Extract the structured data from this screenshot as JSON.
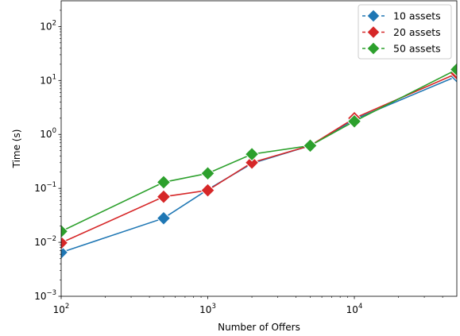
{
  "chart_data": {
    "type": "line",
    "xlabel": "Number of Offers",
    "ylabel": "Time (s)",
    "xscale": "log",
    "yscale": "log",
    "xlim": [
      100,
      50000
    ],
    "ylim": [
      0.001,
      300
    ],
    "x": [
      100,
      500,
      1000,
      2000,
      5000,
      10000,
      50000
    ],
    "xticks": [
      {
        "value": 100,
        "base": "10",
        "exp": "2"
      },
      {
        "value": 1000,
        "base": "10",
        "exp": "3"
      },
      {
        "value": 10000,
        "base": "10",
        "exp": "4"
      }
    ],
    "yticks": [
      {
        "value": 0.001,
        "base": "10",
        "exp": "−3"
      },
      {
        "value": 0.01,
        "base": "10",
        "exp": "−2"
      },
      {
        "value": 0.1,
        "base": "10",
        "exp": "−1"
      },
      {
        "value": 1,
        "base": "10",
        "exp": "0"
      },
      {
        "value": 10,
        "base": "10",
        "exp": "1"
      },
      {
        "value": 100,
        "base": "10",
        "exp": "2"
      }
    ],
    "series": [
      {
        "name": "10 assets",
        "color": "#1f77b4",
        "values": [
          0.0065,
          0.028,
          0.095,
          0.29,
          0.62,
          1.9,
          12
        ]
      },
      {
        "name": "20 assets",
        "color": "#d62728",
        "values": [
          0.0098,
          0.07,
          0.092,
          0.3,
          0.62,
          2.0,
          13.5
        ]
      },
      {
        "name": "50 assets",
        "color": "#2ca02c",
        "values": [
          0.016,
          0.13,
          0.19,
          0.43,
          0.62,
          1.75,
          16
        ]
      }
    ],
    "legend": "top-right",
    "grid": false,
    "marker": "diamond"
  }
}
